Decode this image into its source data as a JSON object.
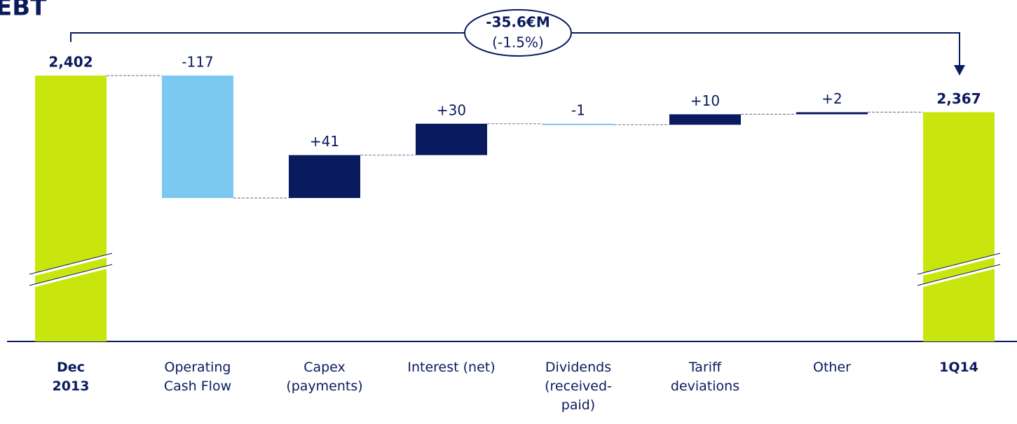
{
  "chart_data": {
    "type": "waterfall",
    "title": "EBT",
    "categories": [
      "Dec\n2013",
      "Operating\nCash Flow",
      "Capex\n(payments)",
      "Interest (net)",
      "Dividends\n(received-\npaid)",
      "Tariff\ndeviations",
      "Other",
      "1Q14"
    ],
    "values": [
      2402,
      -117,
      41,
      30,
      -1,
      10,
      2,
      2367
    ],
    "value_labels": [
      "2,402",
      "-117",
      "+41",
      "+30",
      "-1",
      "+10",
      "+2",
      "2,367"
    ],
    "is_total": [
      true,
      false,
      false,
      false,
      false,
      false,
      false,
      true
    ],
    "colors": {
      "total": "#c8e60e",
      "increase": "#0a1a5e",
      "decrease": "#7bc8f2"
    },
    "annotation": {
      "text": "-35.6€M",
      "subtext": "(-1.5%)"
    }
  }
}
